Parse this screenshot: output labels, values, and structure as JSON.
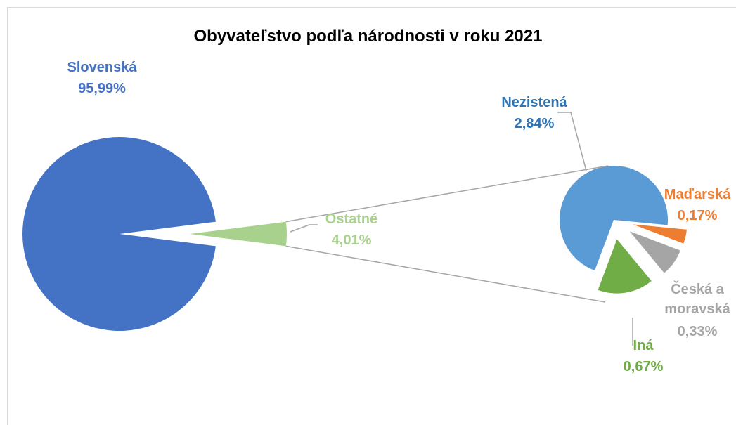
{
  "chart_data": {
    "type": "pie_of_pie",
    "title": "Obyvateľstvo podľa národnosti v roku 2021",
    "categories": [
      "Slovenská",
      "Ostatné"
    ],
    "values": [
      95.99,
      4.01
    ],
    "value_labels": [
      "95,99%",
      "4,01%"
    ],
    "colors": [
      "#4472c4",
      "#a9d18e"
    ],
    "secondary": {
      "categories": [
        "Maďarská",
        "Česká a moravská",
        "Iná",
        "Nezistená"
      ],
      "values": [
        0.17,
        0.33,
        0.67,
        2.84
      ],
      "value_labels": [
        "0,17%",
        "0,33%",
        "0,67%",
        "2,84%"
      ],
      "colors": [
        "#ed7d31",
        "#a5a5a5",
        "#70ad47",
        "#5b9bd5"
      ]
    }
  }
}
